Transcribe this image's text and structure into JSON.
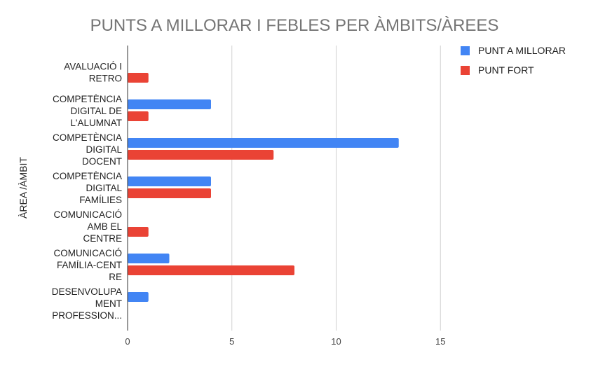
{
  "chart_data": {
    "type": "bar",
    "orientation": "horizontal",
    "title": "PUNTS A MILLORAR I FEBLES PER ÀMBITS/ÀREES",
    "ylabel": "ÀREA /ÀMBIT",
    "xlabel": "",
    "categories": [
      [
        "AVALUACIÓ I",
        "RETRO"
      ],
      [
        "COMPETÈNCIA",
        "DIGITAL DE",
        "L'ALUMNAT"
      ],
      [
        "COMPETÈNCIA",
        "DIGITAL",
        "DOCENT"
      ],
      [
        "COMPETÈNCIA",
        "DIGITAL",
        "FAMÍLIES"
      ],
      [
        "COMUNICACIÓ",
        "AMB EL",
        "CENTRE"
      ],
      [
        "COMUNICACIÓ",
        "FAMÍLIA-CENT",
        "RE"
      ],
      [
        "DESENVOLUPA",
        "MENT",
        "PROFESSION..."
      ]
    ],
    "series": [
      {
        "name": "PUNT A MILLORAR",
        "color": "#4285f4",
        "values": [
          0,
          4,
          13,
          4,
          0,
          2,
          1
        ]
      },
      {
        "name": "PUNT FORT",
        "color": "#ea4335",
        "values": [
          1,
          1,
          7,
          4,
          1,
          8,
          0
        ]
      }
    ],
    "xlim": [
      0,
      17
    ],
    "xticks": [
      "0",
      "5",
      "10",
      "15"
    ],
    "xtick_values": [
      0,
      5,
      10,
      15
    ],
    "grid": true,
    "legend": "top-right"
  }
}
